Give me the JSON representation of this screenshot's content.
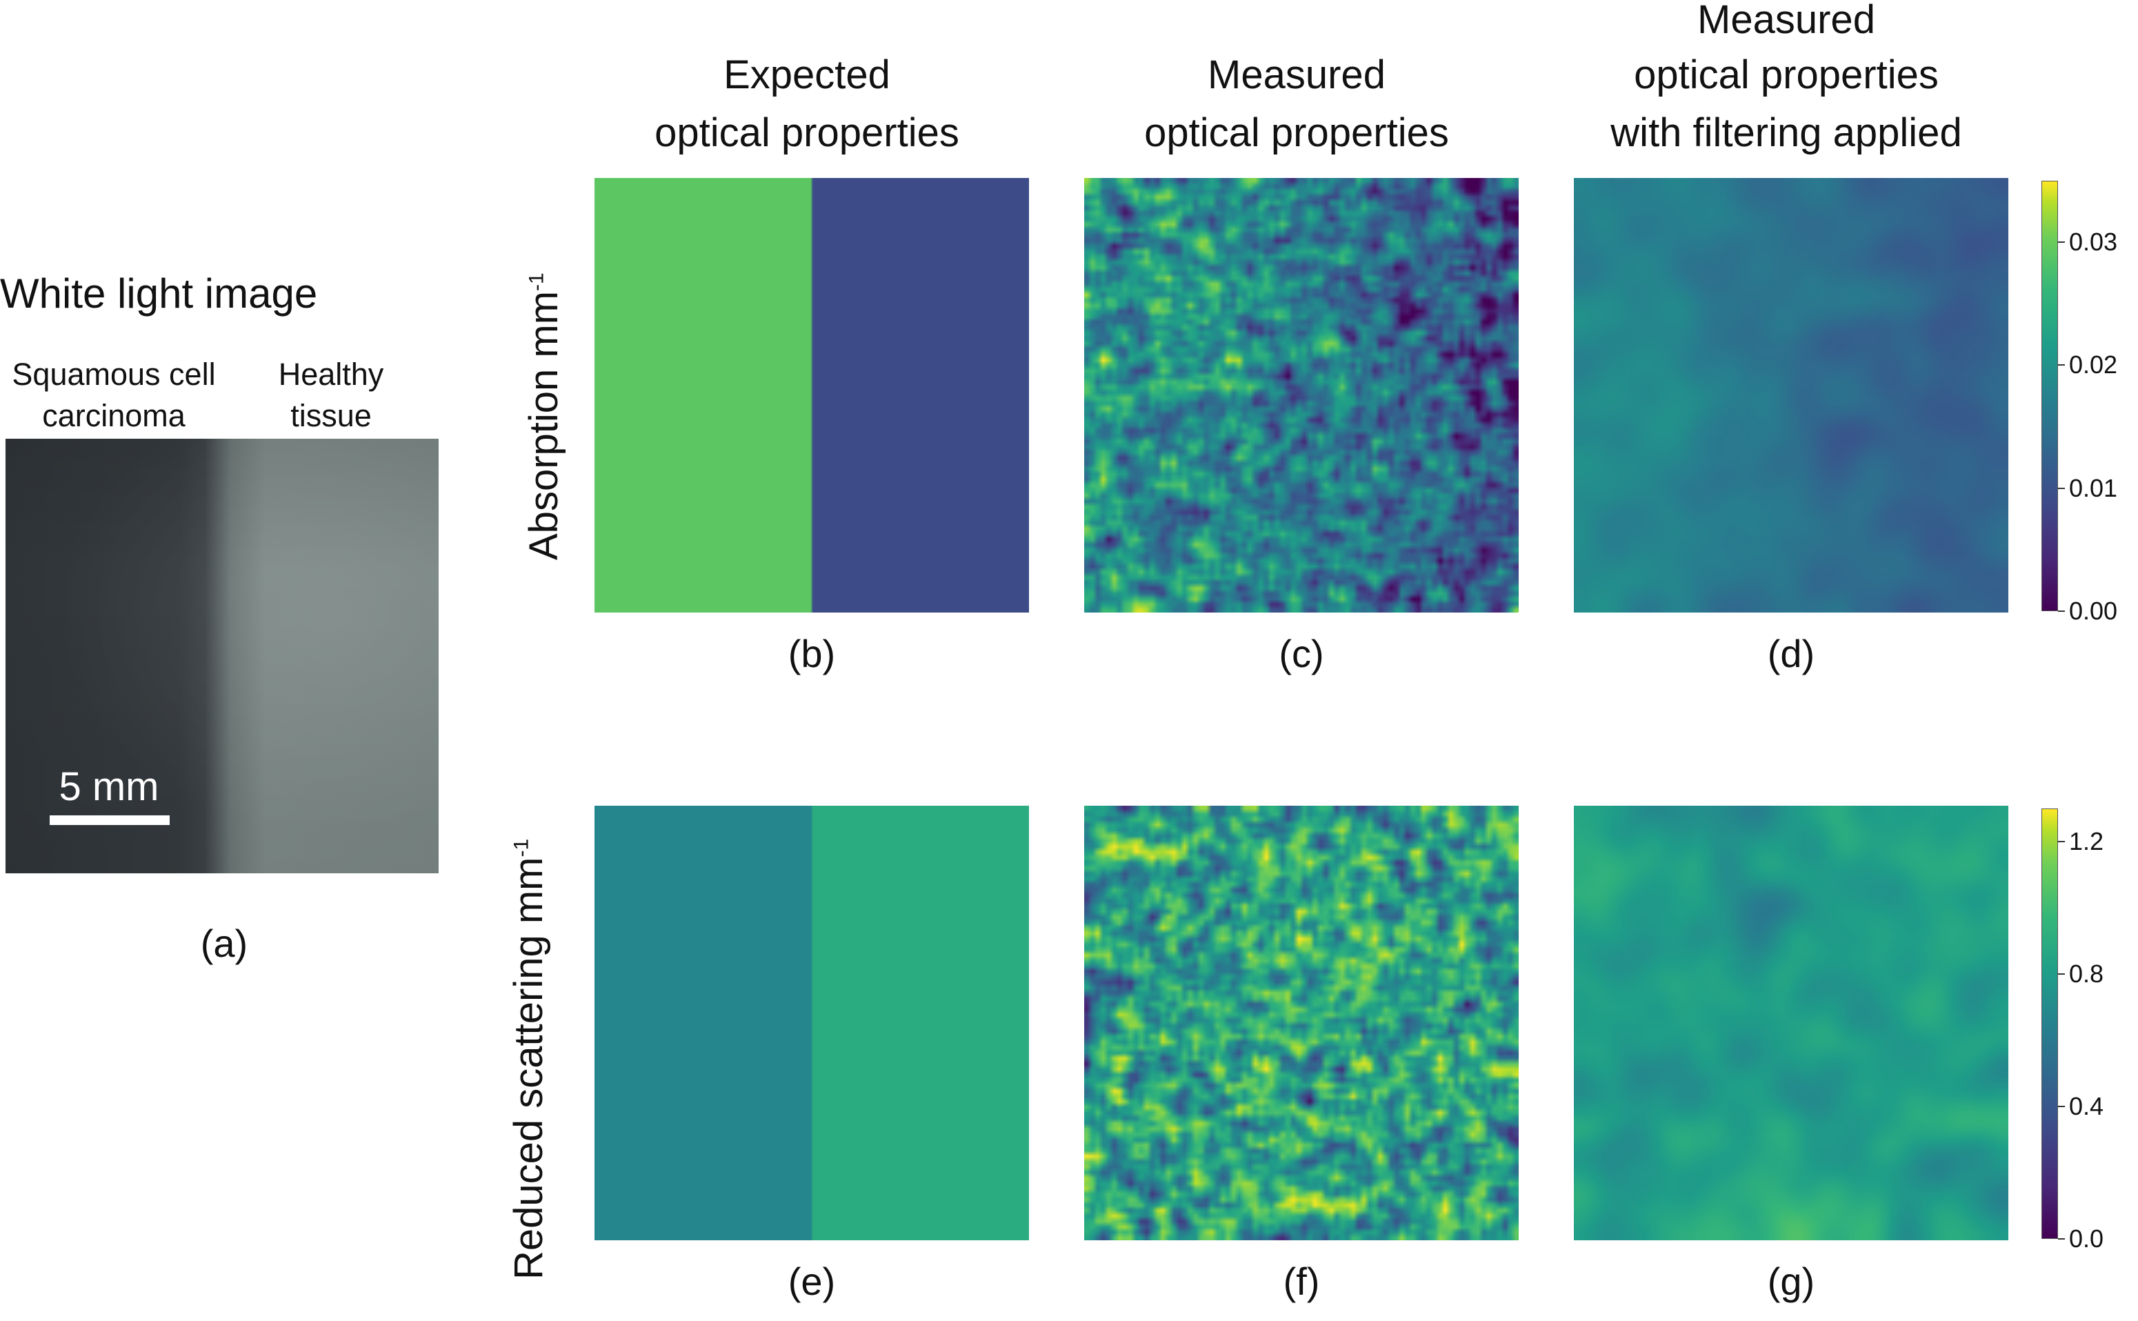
{
  "panel_a": {
    "title": "White light image",
    "left_label_line1": "Squamous cell",
    "left_label_line2": "carcinoma",
    "right_label_line1": "Healthy",
    "right_label_line2": "tissue",
    "scale_bar_label": "5 mm",
    "caption": "(a)"
  },
  "columns": {
    "expected_line1": "Expected",
    "expected_line2": "optical properties",
    "measured_line1": "Measured",
    "measured_line2": "optical properties",
    "filtered_line1": "Measured",
    "filtered_line2": "optical properties",
    "filtered_line3": "with filtering applied"
  },
  "rows": {
    "absorption_label": "Absorption mm",
    "absorption_exp": "-1",
    "scattering_label": "Reduced scattering mm",
    "scattering_exp": "-1"
  },
  "captions": {
    "b": "(b)",
    "c": "(c)",
    "d": "(d)",
    "e": "(e)",
    "f": "(f)",
    "g": "(g)"
  },
  "colorbar_absorption": {
    "ticks": [
      "0.03",
      "0.02",
      "0.01",
      "0.00"
    ],
    "values": [
      0.03,
      0.02,
      0.01,
      0.0
    ],
    "range": [
      0.0,
      0.035
    ]
  },
  "colorbar_scattering": {
    "ticks": [
      "1.2",
      "0.8",
      "0.4",
      "0.0"
    ],
    "values": [
      1.2,
      0.8,
      0.4,
      0.0
    ],
    "range": [
      0.0,
      1.3
    ]
  },
  "chart_data": [
    {
      "type": "heatmap",
      "panel": "(b)",
      "quantity": "Absorption mm-1",
      "left_value": 0.026,
      "right_value": 0.008,
      "split": 0.5
    },
    {
      "type": "heatmap",
      "panel": "(c)",
      "quantity": "Absorption mm-1",
      "left_mean": 0.018,
      "right_mean": 0.01,
      "noise": "high"
    },
    {
      "type": "heatmap",
      "panel": "(d)",
      "quantity": "Absorption mm-1",
      "left_mean": 0.016,
      "right_mean": 0.011,
      "noise": "smoothed"
    },
    {
      "type": "heatmap",
      "panel": "(e)",
      "quantity": "Reduced scattering mm-1",
      "left_value": 0.6,
      "right_value": 0.8,
      "split": 0.5
    },
    {
      "type": "heatmap",
      "panel": "(f)",
      "quantity": "Reduced scattering mm-1",
      "mean": 0.75,
      "noise": "high"
    },
    {
      "type": "heatmap",
      "panel": "(g)",
      "quantity": "Reduced scattering mm-1",
      "mean": 0.75,
      "noise": "smoothed"
    }
  ]
}
